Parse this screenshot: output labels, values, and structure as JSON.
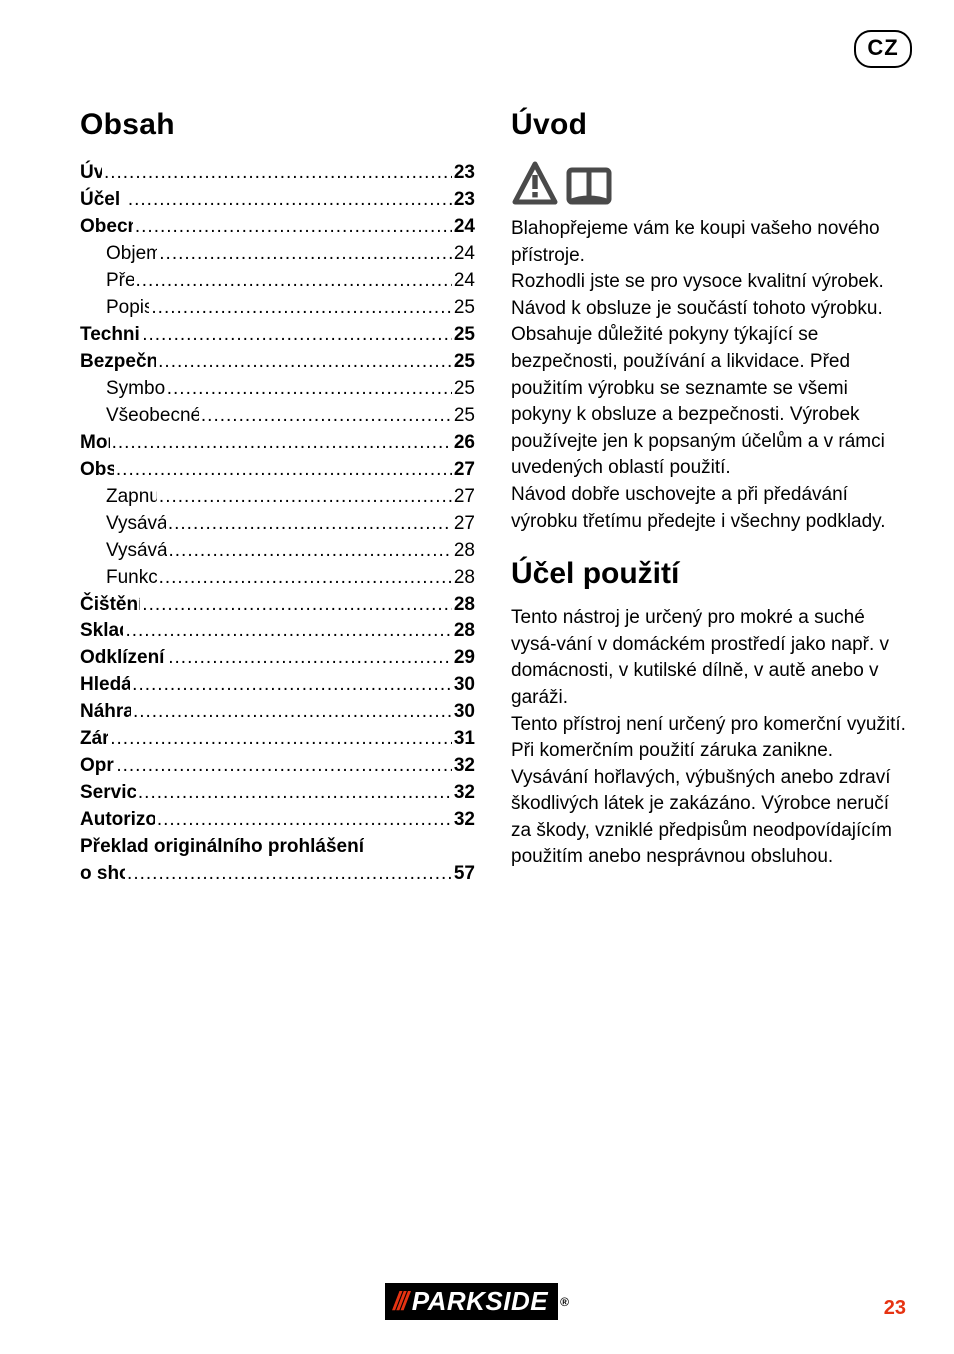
{
  "locale_badge": "CZ",
  "colors": {
    "text": "#000000",
    "background": "#ffffff",
    "accent": "#e63312",
    "brand_bg": "#000000",
    "brand_text": "#ffffff"
  },
  "typography": {
    "heading_fontsize_pt": 22,
    "body_fontsize_pt": 14,
    "toc_fontsize_pt": 14
  },
  "left": {
    "title": "Obsah",
    "toc": [
      {
        "label": "Úvod",
        "page": "23",
        "level": 0,
        "bold": true
      },
      {
        "label": "Účel použití",
        "page": "23",
        "level": 0,
        "bold": true
      },
      {
        "label": "Obecný popis",
        "page": "24",
        "level": 0,
        "bold": true
      },
      {
        "label": "Objem dodávky",
        "page": "24",
        "level": 1,
        "bold": false
      },
      {
        "label": "Přehled",
        "page": "24",
        "level": 1,
        "bold": false
      },
      {
        "label": "Popis funkce",
        "page": "25",
        "level": 1,
        "bold": false
      },
      {
        "label": "Technické údaje",
        "page": "25",
        "level": 0,
        "bold": true
      },
      {
        "label": "Bezpečnostní pokyny",
        "page": "25",
        "level": 0,
        "bold": true
      },
      {
        "label": "Symboly v návodu",
        "page": "25",
        "level": 1,
        "bold": false
      },
      {
        "label": "Všeobecné bezpečnostní pokyny",
        "page": "25",
        "level": 1,
        "bold": false
      },
      {
        "label": "Montáž",
        "page": "26",
        "level": 0,
        "bold": true
      },
      {
        "label": "Obsluha",
        "page": "27",
        "level": 0,
        "bold": true
      },
      {
        "label": "Zapnutí/vypnutí",
        "page": "27",
        "level": 1,
        "bold": false
      },
      {
        "label": "Vysávání za sucha",
        "page": "27",
        "level": 1,
        "bold": false
      },
      {
        "label": "Vysávání za mokra",
        "page": "28",
        "level": 1,
        "bold": false
      },
      {
        "label": "Funkce foukání",
        "page": "28",
        "level": 1,
        "bold": false
      },
      {
        "label": "Čištění a údržba",
        "page": "28",
        "level": 0,
        "bold": true
      },
      {
        "label": "Skladování",
        "page": "28",
        "level": 0,
        "bold": true
      },
      {
        "label": "Odklízení a ochrana okolí",
        "page": "29",
        "level": 0,
        "bold": true
      },
      {
        "label": "Hledání chyb",
        "page": "30",
        "level": 0,
        "bold": true
      },
      {
        "label": "Náhradní díly",
        "page": "30",
        "level": 0,
        "bold": true
      },
      {
        "label": "Záruka",
        "page": "31",
        "level": 0,
        "bold": true
      },
      {
        "label": "Opravna",
        "page": "32",
        "level": 0,
        "bold": true
      },
      {
        "label": "Service-Center",
        "page": "32",
        "level": 0,
        "bold": true
      },
      {
        "label": "Autorizované servisy",
        "page": "32",
        "level": 0,
        "bold": true
      },
      {
        "label": "Překlad originálního prohlášení",
        "page": "",
        "level": 0,
        "bold": true,
        "noPage": true
      },
      {
        "label": "o shodě CE",
        "page": "57",
        "level": 0,
        "bold": true
      }
    ]
  },
  "right": {
    "title": "Úvod",
    "intro_paragraph": "Blahopřejeme vám ke koupi vašeho nového přístroje.\nRozhodli jste se pro vysoce kvalitní výrobek. Návod k obsluze je součástí tohoto výrobku. Obsahuje důležité pokyny týkající se bezpečnosti, používání a likvidace. Před použitím výrobku se seznamte se všemi pokyny k obsluze a bezpečnosti. Výrobek používejte jen k popsaným účelům a v rámci uvedených oblastí použití.\nNávod dobře uschovejte a při předávání výrobku třetímu předejte i všechny podklady.",
    "purpose_title": "Účel použití",
    "purpose_paragraph": "Tento nástroj je určený pro mokré a suché vysá-vání v domáckém prostředí jako např. v domácnosti, v kutilské dílně, v autě anebo v garáži.\nTento přístroj není určený pro komerční využití. Při komerčním použití záruka zanikne. Vysávání hořlavých, výbušných anebo zdraví škodlivých látek je zakázáno. Výrobce neručí za škody, vzniklé předpisům neodpovídajícím použitím anebo nesprávnou obsluhou."
  },
  "footer": {
    "brand": "PARKSIDE",
    "page_number": "23"
  }
}
